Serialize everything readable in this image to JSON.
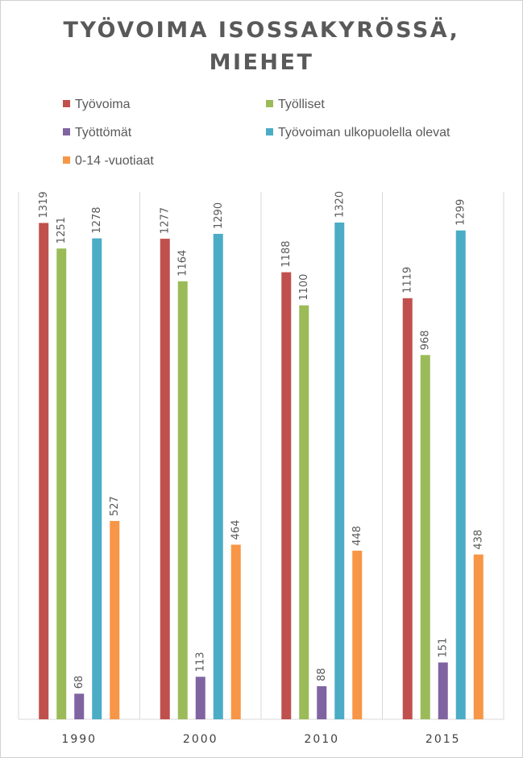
{
  "chart_data": {
    "type": "bar",
    "title": "TYÖVOIMA ISOSSAKYRÖSSÄ, MIEHET",
    "title_lines": [
      "TYÖVOIMA ISOSSAKYRÖSSÄ,",
      "MIEHET"
    ],
    "categories": [
      "1990",
      "2000",
      "2010",
      "2015"
    ],
    "series": [
      {
        "name": "Työvoima",
        "color": "#c0504d",
        "values": [
          1319,
          1277,
          1188,
          1119
        ]
      },
      {
        "name": "Työlliset",
        "color": "#9bbb59",
        "values": [
          1251,
          1164,
          1100,
          968
        ]
      },
      {
        "name": "Työttömät",
        "color": "#8064a2",
        "values": [
          68,
          113,
          88,
          151
        ]
      },
      {
        "name": "Työvoiman ulkopuolella olevat",
        "color": "#4bacc6",
        "values": [
          1278,
          1290,
          1320,
          1299
        ]
      },
      {
        "name": "0-14 -vuotiaat",
        "color": "#f79646",
        "values": [
          527,
          464,
          448,
          438
        ]
      }
    ],
    "ylim": [
      0,
      1400
    ],
    "legend_position": "top",
    "grid": "vertical category separators",
    "data_labels": true
  }
}
